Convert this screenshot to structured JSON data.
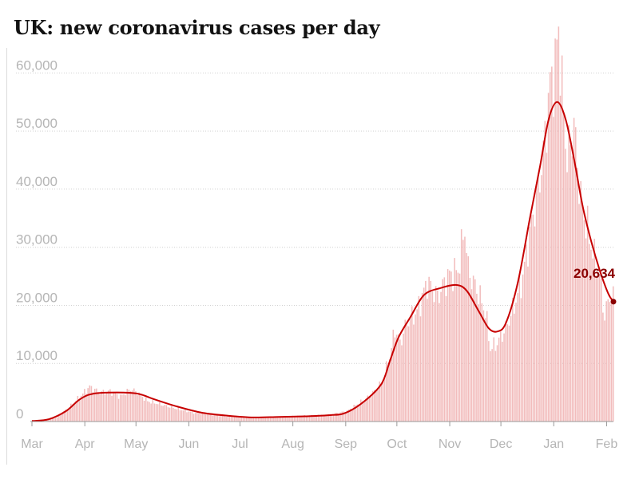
{
  "chart_data": {
    "type": "bar",
    "title": "UK: new coronavirus cases per day",
    "xlabel": "",
    "ylabel": "",
    "ylim": [
      0,
      65000
    ],
    "y_ticks": [
      0,
      10000,
      20000,
      30000,
      40000,
      50000,
      60000
    ],
    "y_tick_labels": [
      "0",
      "10,000",
      "20,000",
      "30,000",
      "40,000",
      "50,000",
      "60,000"
    ],
    "x_range_days": [
      0,
      341
    ],
    "x_ticks": [
      {
        "label": "Mar",
        "day": 0
      },
      {
        "label": "Apr",
        "day": 31
      },
      {
        "label": "May",
        "day": 61
      },
      {
        "label": "Jun",
        "day": 92
      },
      {
        "label": "Jul",
        "day": 122
      },
      {
        "label": "Aug",
        "day": 153
      },
      {
        "label": "Sep",
        "day": 184
      },
      {
        "label": "Oct",
        "day": 214
      },
      {
        "label": "Nov",
        "day": 245
      },
      {
        "label": "Dec",
        "day": 275
      },
      {
        "label": "Jan",
        "day": 306
      },
      {
        "label": "Feb",
        "day": 337
      }
    ],
    "bar_color": "#f2bcbc",
    "line_color": "#c70000",
    "bar_series_keypoints": [
      [
        0,
        50
      ],
      [
        8,
        200
      ],
      [
        15,
        700
      ],
      [
        22,
        2500
      ],
      [
        29,
        4500
      ],
      [
        34,
        6000
      ],
      [
        40,
        5000
      ],
      [
        46,
        5200
      ],
      [
        52,
        4300
      ],
      [
        58,
        5600
      ],
      [
        62,
        5000
      ],
      [
        68,
        3500
      ],
      [
        75,
        3000
      ],
      [
        85,
        2200
      ],
      [
        95,
        1500
      ],
      [
        105,
        1200
      ],
      [
        115,
        900
      ],
      [
        125,
        700
      ],
      [
        135,
        750
      ],
      [
        145,
        800
      ],
      [
        155,
        950
      ],
      [
        165,
        1050
      ],
      [
        175,
        1200
      ],
      [
        185,
        1800
      ],
      [
        192,
        3200
      ],
      [
        198,
        4300
      ],
      [
        205,
        6500
      ],
      [
        210,
        11000
      ],
      [
        213,
        16000
      ],
      [
        216,
        13500
      ],
      [
        220,
        17000
      ],
      [
        226,
        19000
      ],
      [
        232,
        24000
      ],
      [
        238,
        21500
      ],
      [
        244,
        25000
      ],
      [
        250,
        26000
      ],
      [
        254,
        33500
      ],
      [
        256,
        26000
      ],
      [
        262,
        22000
      ],
      [
        266,
        19000
      ],
      [
        269,
        12500
      ],
      [
        273,
        13500
      ],
      [
        278,
        16000
      ],
      [
        283,
        20000
      ],
      [
        288,
        25000
      ],
      [
        293,
        34000
      ],
      [
        297,
        40000
      ],
      [
        300,
        46000
      ],
      [
        304,
        58000
      ],
      [
        307,
        61000
      ],
      [
        309,
        68000
      ],
      [
        311,
        57000
      ],
      [
        314,
        45000
      ],
      [
        318,
        51000
      ],
      [
        322,
        38000
      ],
      [
        326,
        33000
      ],
      [
        330,
        28000
      ],
      [
        333,
        25000
      ],
      [
        336,
        18000
      ],
      [
        339,
        22000
      ],
      [
        341,
        21000
      ]
    ],
    "smoothed_series": [
      [
        0,
        100
      ],
      [
        10,
        400
      ],
      [
        20,
        1800
      ],
      [
        28,
        3800
      ],
      [
        36,
        4800
      ],
      [
        50,
        5000
      ],
      [
        62,
        4800
      ],
      [
        72,
        3800
      ],
      [
        85,
        2600
      ],
      [
        100,
        1500
      ],
      [
        115,
        1000
      ],
      [
        130,
        700
      ],
      [
        145,
        800
      ],
      [
        160,
        900
      ],
      [
        175,
        1100
      ],
      [
        184,
        1500
      ],
      [
        195,
        3500
      ],
      [
        205,
        6500
      ],
      [
        210,
        10500
      ],
      [
        215,
        14500
      ],
      [
        222,
        18000
      ],
      [
        230,
        21800
      ],
      [
        240,
        23000
      ],
      [
        249,
        23500
      ],
      [
        255,
        22500
      ],
      [
        262,
        19000
      ],
      [
        268,
        16000
      ],
      [
        273,
        15500
      ],
      [
        278,
        17000
      ],
      [
        285,
        24000
      ],
      [
        292,
        35000
      ],
      [
        298,
        44000
      ],
      [
        303,
        52000
      ],
      [
        308,
        55000
      ],
      [
        313,
        52000
      ],
      [
        318,
        45000
      ],
      [
        323,
        37000
      ],
      [
        328,
        31000
      ],
      [
        333,
        26000
      ],
      [
        338,
        22000
      ],
      [
        341,
        20634
      ]
    ],
    "annotation": {
      "label": "20,634",
      "day": 341,
      "value": 20634
    }
  }
}
